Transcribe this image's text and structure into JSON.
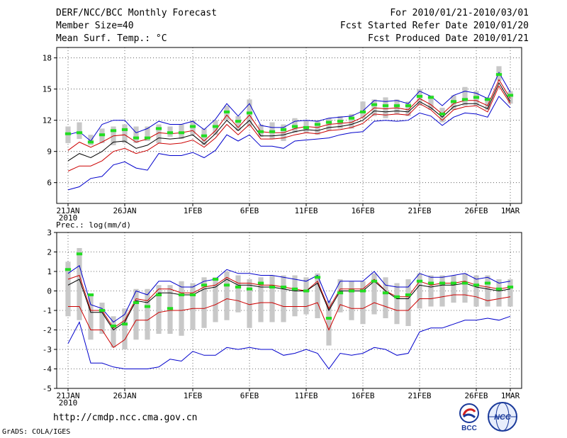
{
  "header": {
    "title": "DERF/NCC/BCC Monthly Forecast",
    "member_size": "Member Size=40",
    "variable": "Mean Surf. Temp.: °C",
    "for_period": "For 2010/01/21-2010/03/01",
    "fcst_started": "Fcst Started Refer Date 2010/01/20",
    "fcst_produced": "Fcst Produced Date 2010/01/21"
  },
  "footer": {
    "url": "http://cmdp.ncc.cma.gov.cn",
    "credit": "GrADS: COLA/IGES",
    "logo_bcc": "BCC",
    "logo_ncc": "NCC"
  },
  "colors": {
    "observed": "#22dd22",
    "spread_box": "#c8c8c8",
    "ensemble_max_min": "#0000cc",
    "ensemble_spread": "#cc0000",
    "ensemble_mean": "#000000"
  },
  "chart_data": [
    {
      "type": "line",
      "name": "temperature",
      "title": "Mean Surf. Temp.: °C",
      "x_labels": [
        {
          "label": "21JAN",
          "day": 0,
          "sub": "2010"
        },
        {
          "label": "26JAN",
          "day": 5
        },
        {
          "label": "1FEB",
          "day": 11
        },
        {
          "label": "6FEB",
          "day": 16
        },
        {
          "label": "11FEB",
          "day": 21
        },
        {
          "label": "16FEB",
          "day": 26
        },
        {
          "label": "21FEB",
          "day": 31
        },
        {
          "label": "26FEB",
          "day": 36
        },
        {
          "label": "1MAR",
          "day": 39
        }
      ],
      "xlim": [
        -1,
        40
      ],
      "ylim": [
        4,
        19
      ],
      "yticks": [
        6,
        9,
        12,
        15,
        18
      ],
      "grid": true,
      "days": [
        0,
        1,
        2,
        3,
        4,
        5,
        6,
        7,
        8,
        9,
        10,
        11,
        12,
        13,
        14,
        15,
        16,
        17,
        18,
        19,
        20,
        21,
        22,
        23,
        24,
        25,
        26,
        27,
        28,
        29,
        30,
        31,
        32,
        33,
        34,
        35,
        36,
        37,
        38,
        39
      ],
      "series": [
        {
          "name": "ensemble max",
          "color": "#0000cc",
          "values": [
            10.6,
            10.9,
            10.0,
            11.6,
            12.0,
            12.0,
            10.8,
            11.2,
            11.9,
            11.6,
            11.6,
            11.9,
            11.1,
            12.1,
            13.6,
            12.4,
            13.6,
            11.5,
            11.3,
            11.3,
            11.9,
            12.0,
            11.9,
            12.2,
            12.3,
            12.4,
            12.9,
            13.9,
            13.8,
            13.9,
            13.6,
            14.8,
            14.3,
            13.4,
            14.4,
            14.8,
            14.6,
            14.1,
            16.6,
            14.7
          ]
        },
        {
          "name": "spread upper",
          "color": "#cc0000",
          "values": [
            9.1,
            9.9,
            9.4,
            9.9,
            10.5,
            10.6,
            9.9,
            10.2,
            10.8,
            10.7,
            10.8,
            11.0,
            10.0,
            11.0,
            12.5,
            11.3,
            12.5,
            10.9,
            10.8,
            10.8,
            11.2,
            11.4,
            11.3,
            11.6,
            11.7,
            11.8,
            12.3,
            13.2,
            13.1,
            13.2,
            13.0,
            14.1,
            13.5,
            12.6,
            13.6,
            13.9,
            13.9,
            13.4,
            15.9,
            14.1
          ]
        },
        {
          "name": "ensemble mean",
          "color": "#000000",
          "values": [
            8.1,
            8.8,
            8.4,
            9.0,
            9.9,
            10.0,
            9.3,
            9.6,
            10.3,
            10.2,
            10.3,
            10.6,
            9.7,
            10.7,
            12.0,
            11.0,
            12.0,
            10.5,
            10.5,
            10.6,
            10.9,
            11.1,
            11.0,
            11.3,
            11.4,
            11.6,
            12.0,
            12.9,
            12.8,
            12.9,
            12.8,
            13.8,
            13.2,
            12.3,
            13.3,
            13.6,
            13.6,
            13.1,
            15.6,
            13.8
          ]
        },
        {
          "name": "spread lower",
          "color": "#cc0000",
          "values": [
            7.1,
            7.6,
            7.6,
            8.1,
            9.0,
            9.3,
            8.8,
            9.1,
            9.8,
            9.7,
            9.8,
            10.1,
            9.4,
            10.3,
            11.6,
            10.6,
            11.6,
            10.2,
            10.2,
            10.3,
            10.6,
            10.8,
            10.7,
            11.0,
            11.1,
            11.3,
            11.7,
            12.6,
            12.5,
            12.6,
            12.5,
            13.6,
            13.0,
            12.0,
            13.0,
            13.3,
            13.4,
            12.8,
            15.3,
            13.6
          ]
        },
        {
          "name": "ensemble min",
          "color": "#0000cc",
          "values": [
            5.3,
            5.6,
            6.4,
            6.6,
            7.7,
            8.0,
            7.4,
            7.2,
            8.8,
            8.6,
            8.6,
            8.9,
            8.4,
            9.1,
            10.6,
            10.0,
            10.6,
            9.5,
            9.5,
            9.3,
            10.0,
            10.1,
            10.2,
            10.3,
            10.6,
            10.8,
            10.9,
            11.9,
            12.0,
            11.9,
            12.0,
            12.7,
            12.4,
            11.5,
            12.3,
            12.7,
            12.6,
            12.3,
            14.3,
            13.2
          ]
        }
      ],
      "boxes": {
        "color": "#c8c8c8",
        "low": [
          9.8,
          10.2,
          9.6,
          9.8,
          9.6,
          9.8,
          9.8,
          10.0,
          9.8,
          10.4,
          10.2,
          10.6,
          9.6,
          10.6,
          12.0,
          11.0,
          11.4,
          10.4,
          10.2,
          10.0,
          10.8,
          10.8,
          10.6,
          11.0,
          11.2,
          11.2,
          12.2,
          12.4,
          12.2,
          12.6,
          12.4,
          13.4,
          13.0,
          11.8,
          13.0,
          13.4,
          13.4,
          13.0,
          15.8,
          13.6
        ],
        "high": [
          11.4,
          11.8,
          10.6,
          11.2,
          11.4,
          11.6,
          11.4,
          11.4,
          11.6,
          11.4,
          11.6,
          12.0,
          11.2,
          12.0,
          13.4,
          12.4,
          14.0,
          11.6,
          11.8,
          11.6,
          12.2,
          12.0,
          12.0,
          12.2,
          12.4,
          12.6,
          13.8,
          14.0,
          14.2,
          14.0,
          13.8,
          15.0,
          14.4,
          13.2,
          14.4,
          15.2,
          14.8,
          14.2,
          17.2,
          14.8
        ]
      },
      "observed": {
        "color": "#22dd22",
        "values": [
          10.7,
          10.8,
          9.9,
          10.6,
          11.0,
          11.1,
          10.3,
          10.3,
          11.2,
          10.8,
          10.8,
          11.4,
          10.5,
          11.4,
          12.8,
          11.9,
          12.7,
          10.9,
          10.9,
          11.1,
          11.4,
          11.3,
          11.6,
          11.8,
          11.9,
          12.2,
          12.8,
          13.5,
          13.4,
          13.4,
          13.4,
          14.3,
          14.2,
          12.6,
          13.8,
          14.0,
          14.2,
          14.0,
          16.4,
          14.4
        ]
      }
    },
    {
      "type": "line",
      "name": "precipitation",
      "title": "Prec.: log(mm/d)",
      "x_labels": [
        {
          "label": "21JAN",
          "day": 0,
          "sub": "2010"
        },
        {
          "label": "26JAN",
          "day": 5
        },
        {
          "label": "1FEB",
          "day": 11
        },
        {
          "label": "6FEB",
          "day": 16
        },
        {
          "label": "11FEB",
          "day": 21
        },
        {
          "label": "16FEB",
          "day": 26
        },
        {
          "label": "21FEB",
          "day": 31
        },
        {
          "label": "26FEB",
          "day": 36
        },
        {
          "label": "1MAR",
          "day": 39
        }
      ],
      "xlim": [
        -1,
        40
      ],
      "ylim": [
        -5,
        3
      ],
      "yticks": [
        -5,
        -4,
        -3,
        -2,
        -1,
        0,
        1,
        2,
        3
      ],
      "grid": true,
      "days": [
        0,
        1,
        2,
        3,
        4,
        5,
        6,
        7,
        8,
        9,
        10,
        11,
        12,
        13,
        14,
        15,
        16,
        17,
        18,
        19,
        20,
        21,
        22,
        23,
        24,
        25,
        26,
        27,
        28,
        29,
        30,
        31,
        32,
        33,
        34,
        35,
        36,
        37,
        38,
        39
      ],
      "series": [
        {
          "name": "ensemble max",
          "color": "#0000cc",
          "values": [
            0.9,
            1.3,
            -0.7,
            -0.9,
            -1.6,
            -1.2,
            0.0,
            -0.2,
            0.5,
            0.5,
            0.2,
            0.2,
            0.5,
            0.6,
            1.1,
            0.9,
            0.9,
            0.8,
            0.8,
            0.7,
            0.6,
            0.5,
            0.8,
            -0.6,
            0.5,
            0.5,
            0.5,
            1.0,
            0.3,
            0.2,
            0.2,
            0.9,
            0.7,
            0.7,
            0.8,
            0.9,
            0.6,
            0.7,
            0.4,
            0.5
          ]
        },
        {
          "name": "spread upper",
          "color": "#cc0000",
          "values": [
            0.6,
            0.8,
            -1.0,
            -1.0,
            -1.9,
            -1.5,
            -0.4,
            -0.5,
            0.1,
            0.1,
            -0.1,
            -0.1,
            0.2,
            0.3,
            0.7,
            0.4,
            0.4,
            0.3,
            0.3,
            0.2,
            0.1,
            0.0,
            0.5,
            -0.9,
            0.1,
            0.1,
            0.1,
            0.6,
            0.0,
            -0.3,
            -0.3,
            0.5,
            0.3,
            0.4,
            0.4,
            0.5,
            0.3,
            0.2,
            0.1,
            0.2
          ]
        },
        {
          "name": "ensemble mean",
          "color": "#000000",
          "values": [
            0.3,
            0.6,
            -1.1,
            -1.1,
            -2.0,
            -1.6,
            -0.5,
            -0.6,
            -0.1,
            -0.1,
            -0.2,
            -0.2,
            0.1,
            0.2,
            0.6,
            0.3,
            0.3,
            0.2,
            0.2,
            0.1,
            0.0,
            0.0,
            0.4,
            -1.0,
            0.0,
            0.0,
            0.0,
            0.5,
            0.0,
            -0.4,
            -0.4,
            0.3,
            0.2,
            0.3,
            0.3,
            0.4,
            0.2,
            0.1,
            0.0,
            0.1
          ]
        },
        {
          "name": "spread lower",
          "color": "#cc0000",
          "values": [
            -0.8,
            -0.8,
            -2.0,
            -2.0,
            -2.9,
            -2.5,
            -1.5,
            -1.5,
            -1.1,
            -1.0,
            -1.0,
            -0.9,
            -0.9,
            -0.7,
            -0.4,
            -0.5,
            -0.7,
            -0.6,
            -0.6,
            -0.8,
            -0.8,
            -0.8,
            -0.6,
            -2.0,
            -0.7,
            -0.9,
            -0.9,
            -0.6,
            -0.8,
            -1.0,
            -1.0,
            -0.4,
            -0.4,
            -0.3,
            -0.2,
            -0.2,
            -0.3,
            -0.5,
            -0.4,
            -0.3
          ]
        },
        {
          "name": "ensemble min",
          "color": "#0000cc",
          "values": [
            -2.7,
            -1.6,
            -3.7,
            -3.7,
            -3.9,
            -4.0,
            -4.0,
            -4.0,
            -3.9,
            -3.5,
            -3.6,
            -3.1,
            -3.3,
            -3.3,
            -2.9,
            -3.0,
            -2.9,
            -3.0,
            -3.0,
            -3.3,
            -3.2,
            -3.0,
            -3.2,
            -4.0,
            -3.2,
            -3.3,
            -3.2,
            -2.9,
            -3.0,
            -3.3,
            -3.2,
            -2.1,
            -1.9,
            -1.9,
            -1.7,
            -1.5,
            -1.5,
            -1.4,
            -1.5,
            -1.3
          ]
        }
      ],
      "boxes": {
        "color": "#c8c8c8",
        "low": [
          -1.3,
          -1.5,
          -2.5,
          -2.2,
          -2.9,
          -3.0,
          -2.5,
          -2.5,
          -2.2,
          -2.2,
          -2.3,
          -2.0,
          -1.9,
          -1.6,
          -1.5,
          -1.1,
          -1.9,
          -1.6,
          -1.6,
          -1.6,
          -1.3,
          -1.2,
          -1.4,
          -2.8,
          -1.1,
          -1.5,
          -1.7,
          -1.2,
          -1.4,
          -1.7,
          -1.8,
          -0.9,
          -0.8,
          -0.8,
          -0.6,
          -0.6,
          -0.8,
          -0.8,
          -0.8,
          -0.8
        ],
        "high": [
          1.5,
          2.2,
          -0.2,
          -0.6,
          -1.3,
          -0.9,
          0.1,
          0.1,
          0.3,
          0.3,
          0.5,
          0.4,
          0.7,
          0.7,
          1.0,
          0.8,
          0.6,
          0.7,
          0.8,
          0.8,
          0.8,
          0.7,
          0.9,
          -0.5,
          0.6,
          0.5,
          0.5,
          0.9,
          0.7,
          0.4,
          0.6,
          0.9,
          0.8,
          0.8,
          0.8,
          0.9,
          0.8,
          0.8,
          0.6,
          0.6
        ]
      },
      "observed": {
        "color": "#22dd22",
        "values": [
          1.1,
          1.9,
          -0.2,
          -1.0,
          -1.8,
          -1.7,
          -0.6,
          -0.8,
          -0.2,
          -0.9,
          -0.2,
          -0.2,
          0.3,
          0.6,
          0.3,
          0.2,
          0.1,
          0.4,
          0.2,
          0.2,
          0.1,
          0.0,
          0.7,
          -1.4,
          -0.1,
          0.0,
          0.0,
          0.5,
          -0.1,
          -0.3,
          -0.2,
          0.5,
          0.4,
          0.4,
          0.4,
          0.4,
          0.3,
          0.4,
          0.1,
          0.2
        ]
      }
    }
  ]
}
